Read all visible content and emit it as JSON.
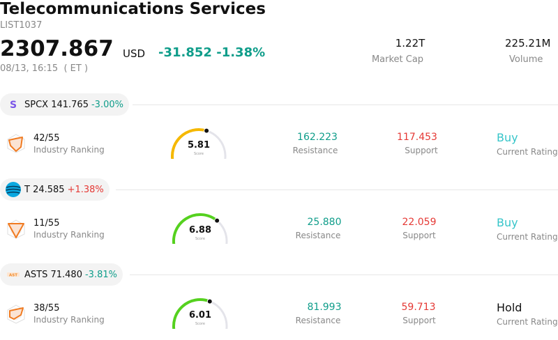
{
  "header": {
    "title": "Telecommunications Services",
    "code": "LIST1037",
    "price": "2307.867",
    "currency": "USD",
    "change": "-31.852",
    "change_pct": "-1.38%",
    "timestamp": "08/13, 16:15  ( ET )",
    "market_cap": {
      "value": "1.22T",
      "label": "Market Cap"
    },
    "volume": {
      "value": "225.21M",
      "label": "Volume"
    }
  },
  "colors": {
    "down": "#0f9d8a",
    "up": "#e53935",
    "buy": "#36c5c9",
    "gauge_track": "#e4e4ea",
    "gauge_yellow": "#f5b800",
    "gauge_green": "#55d11f"
  },
  "stocks": [
    {
      "symbol": "SPCX",
      "price": "141.765",
      "change": "-3.00%",
      "logo_icon": "spcx-s-logo-icon",
      "ranking": "42/55",
      "ranking_label": "Industry Ranking",
      "score": "5.81",
      "score_value": 5.81,
      "score_label": "Score",
      "resistance": "162.223",
      "resistance_label": "Resistance",
      "support": "117.453",
      "support_label": "Support",
      "rating": "Buy",
      "rating_label": "Current Rating"
    },
    {
      "symbol": "T",
      "price": "24.585",
      "change": "+1.38%",
      "logo_icon": "att-globe-logo-icon",
      "ranking": "11/55",
      "ranking_label": "Industry Ranking",
      "score": "6.88",
      "score_value": 6.88,
      "score_label": "Score",
      "resistance": "25.880",
      "resistance_label": "Resistance",
      "support": "22.059",
      "support_label": "Support",
      "rating": "Buy",
      "rating_label": "Current Rating"
    },
    {
      "symbol": "ASTS",
      "price": "71.480",
      "change": "-3.81%",
      "logo_icon": "asts-logo-icon",
      "ranking": "38/55",
      "ranking_label": "Industry Ranking",
      "score": "6.01",
      "score_value": 6.01,
      "score_label": "Score",
      "resistance": "81.993",
      "resistance_label": "Resistance",
      "support": "59.713",
      "support_label": "Support",
      "rating": "Hold",
      "rating_label": "Current Rating"
    }
  ]
}
